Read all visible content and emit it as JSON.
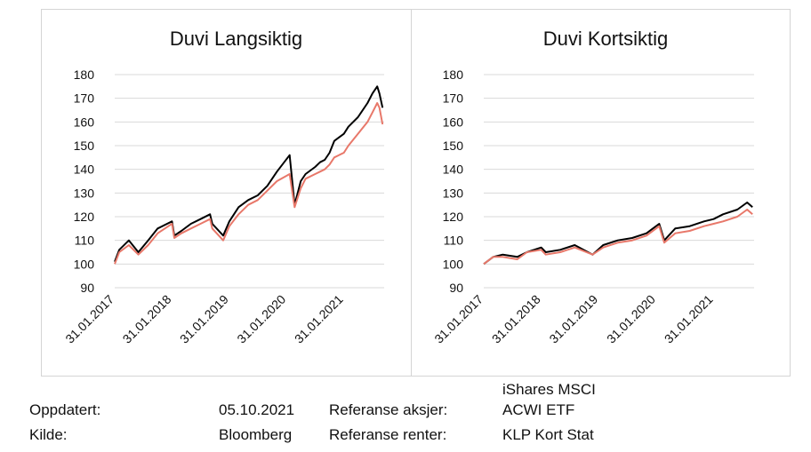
{
  "colors": {
    "black_series": "#000000",
    "salmon_series": "#e8786a",
    "grid": "#d9d9d9"
  },
  "chart_data": [
    {
      "type": "line",
      "title": "Duvi Langsiktig",
      "ylim": [
        90,
        180
      ],
      "yticks": [
        90,
        100,
        110,
        120,
        130,
        140,
        150,
        160,
        170,
        180
      ],
      "xlim": [
        "31.01.2017",
        "15.10.2021"
      ],
      "xticks": [
        "31.01.2017",
        "31.01.2018",
        "31.01.2019",
        "31.01.2020",
        "31.01.2021"
      ],
      "grid": true,
      "legend": "none",
      "series": [
        {
          "color": "#000000",
          "x": [
            "31.01.2017",
            "01.03.2017",
            "01.05.2017",
            "01.07.2017",
            "01.09.2017",
            "01.11.2017",
            "31.01.2018",
            "15.02.2018",
            "01.04.2018",
            "01.06.2018",
            "01.08.2018",
            "01.10.2018",
            "15.10.2018",
            "24.12.2018",
            "01.02.2019",
            "01.04.2019",
            "01.06.2019",
            "01.08.2019",
            "01.10.2019",
            "01.12.2019",
            "20.02.2020",
            "23.03.2020",
            "01.05.2020",
            "01.06.2020",
            "01.08.2020",
            "01.09.2020",
            "01.10.2020",
            "01.11.2020",
            "01.12.2020",
            "31.01.2021",
            "01.03.2021",
            "01.05.2021",
            "01.07.2021",
            "01.08.2021",
            "01.09.2021",
            "15.09.2021",
            "05.10.2021"
          ],
          "y": [
            101,
            106,
            110,
            105,
            110,
            115,
            118,
            112,
            114,
            117,
            119,
            121,
            117,
            112,
            118,
            124,
            127,
            129,
            133,
            139,
            146,
            125,
            135,
            138,
            141,
            143,
            144,
            147,
            152,
            155,
            158,
            162,
            168,
            172,
            175,
            172,
            166
          ]
        },
        {
          "color": "#e8786a",
          "x": [
            "31.01.2017",
            "01.03.2017",
            "01.05.2017",
            "01.07.2017",
            "01.09.2017",
            "01.11.2017",
            "31.01.2018",
            "15.02.2018",
            "01.04.2018",
            "01.06.2018",
            "01.08.2018",
            "01.10.2018",
            "15.10.2018",
            "24.12.2018",
            "01.02.2019",
            "01.04.2019",
            "01.06.2019",
            "01.08.2019",
            "01.10.2019",
            "01.12.2019",
            "20.02.2020",
            "23.03.2020",
            "01.05.2020",
            "01.06.2020",
            "01.08.2020",
            "01.09.2020",
            "01.10.2020",
            "01.11.2020",
            "01.12.2020",
            "31.01.2021",
            "01.03.2021",
            "01.05.2021",
            "01.07.2021",
            "01.08.2021",
            "01.09.2021",
            "15.09.2021",
            "05.10.2021"
          ],
          "y": [
            100,
            105,
            108,
            104,
            108,
            113,
            117,
            111,
            113,
            115,
            117,
            119,
            115,
            110,
            116,
            121,
            125,
            127,
            131,
            135,
            138,
            124,
            132,
            136,
            138,
            139,
            140,
            142,
            145,
            147,
            150,
            155,
            160,
            164,
            168,
            166,
            159
          ]
        }
      ]
    },
    {
      "type": "line",
      "title": "Duvi Kortsiktig",
      "ylim": [
        90,
        180
      ],
      "yticks": [
        90,
        100,
        110,
        120,
        130,
        140,
        150,
        160,
        170,
        180
      ],
      "xlim": [
        "31.01.2017",
        "15.10.2021"
      ],
      "xticks": [
        "31.01.2017",
        "31.01.2018",
        "31.01.2019",
        "31.01.2020",
        "31.01.2021"
      ],
      "grid": true,
      "legend": "none",
      "series": [
        {
          "color": "#000000",
          "x": [
            "31.01.2017",
            "01.04.2017",
            "01.06.2017",
            "01.09.2017",
            "01.11.2017",
            "31.01.2018",
            "01.03.2018",
            "01.06.2018",
            "01.09.2018",
            "24.12.2018",
            "01.03.2019",
            "01.06.2019",
            "01.09.2019",
            "01.12.2019",
            "20.02.2020",
            "23.03.2020",
            "01.06.2020",
            "01.09.2020",
            "01.12.2020",
            "31.01.2021",
            "01.04.2021",
            "01.07.2021",
            "01.09.2021",
            "05.10.2021"
          ],
          "y": [
            100,
            103,
            104,
            103,
            105,
            107,
            105,
            106,
            108,
            104,
            108,
            110,
            111,
            113,
            117,
            110,
            115,
            116,
            118,
            119,
            121,
            123,
            126,
            124
          ]
        },
        {
          "color": "#e8786a",
          "x": [
            "31.01.2017",
            "01.04.2017",
            "01.06.2017",
            "01.09.2017",
            "01.11.2017",
            "31.01.2018",
            "01.03.2018",
            "01.06.2018",
            "01.09.2018",
            "24.12.2018",
            "01.03.2019",
            "01.06.2019",
            "01.09.2019",
            "01.12.2019",
            "20.02.2020",
            "23.03.2020",
            "01.06.2020",
            "01.09.2020",
            "01.12.2020",
            "31.01.2021",
            "01.04.2021",
            "01.07.2021",
            "01.09.2021",
            "05.10.2021"
          ],
          "y": [
            100,
            103,
            103,
            102,
            105,
            106,
            104,
            105,
            107,
            104,
            107,
            109,
            110,
            112,
            116,
            109,
            113,
            114,
            116,
            117,
            118,
            120,
            123,
            121
          ]
        }
      ]
    }
  ],
  "info": {
    "updated_label": "Oppdatert:",
    "updated_value": "05.10.2021",
    "source_label": "Kilde:",
    "source_value": "Bloomberg",
    "equity_ref_label": "Referanse aksjer:",
    "equity_ref_line1": "iShares MSCI",
    "equity_ref_line2": "ACWI ETF",
    "rates_ref_label": "Referanse renter:",
    "rates_ref_value": "KLP Kort Stat"
  }
}
